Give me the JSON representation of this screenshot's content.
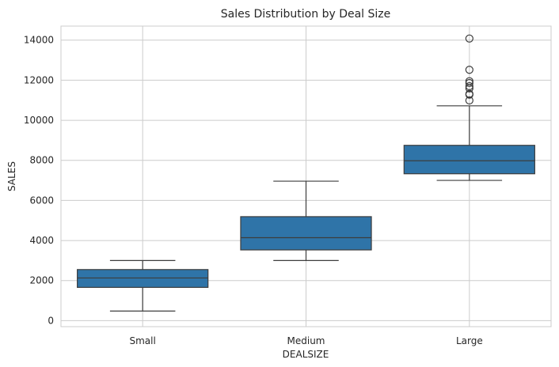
{
  "chart_data": {
    "type": "box",
    "title": "Sales Distribution by Deal Size",
    "xlabel": "DEALSIZE",
    "ylabel": "SALES",
    "categories": [
      "Small",
      "Medium",
      "Large"
    ],
    "ylim": [
      -300,
      14700
    ],
    "yticks": [
      0,
      2000,
      4000,
      6000,
      8000,
      10000,
      12000,
      14000
    ],
    "grid": true,
    "box_color": "#2f74a8",
    "edge_color": "#3d3d3d",
    "grid_color": "#cccccc",
    "boxes": [
      {
        "category": "Small",
        "whisker_low": 480,
        "q1": 1660,
        "median": 2130,
        "q3": 2550,
        "whisker_high": 3000,
        "outliers": []
      },
      {
        "category": "Medium",
        "whisker_low": 3000,
        "q1": 3530,
        "median": 4140,
        "q3": 5190,
        "whisker_high": 6960,
        "outliers": []
      },
      {
        "category": "Large",
        "whisker_low": 7000,
        "q1": 7330,
        "median": 7980,
        "q3": 8750,
        "whisker_high": 10720,
        "outliers": [
          10990,
          11280,
          11320,
          11590,
          11700,
          11860,
          11950,
          12520,
          14080
        ]
      }
    ]
  }
}
